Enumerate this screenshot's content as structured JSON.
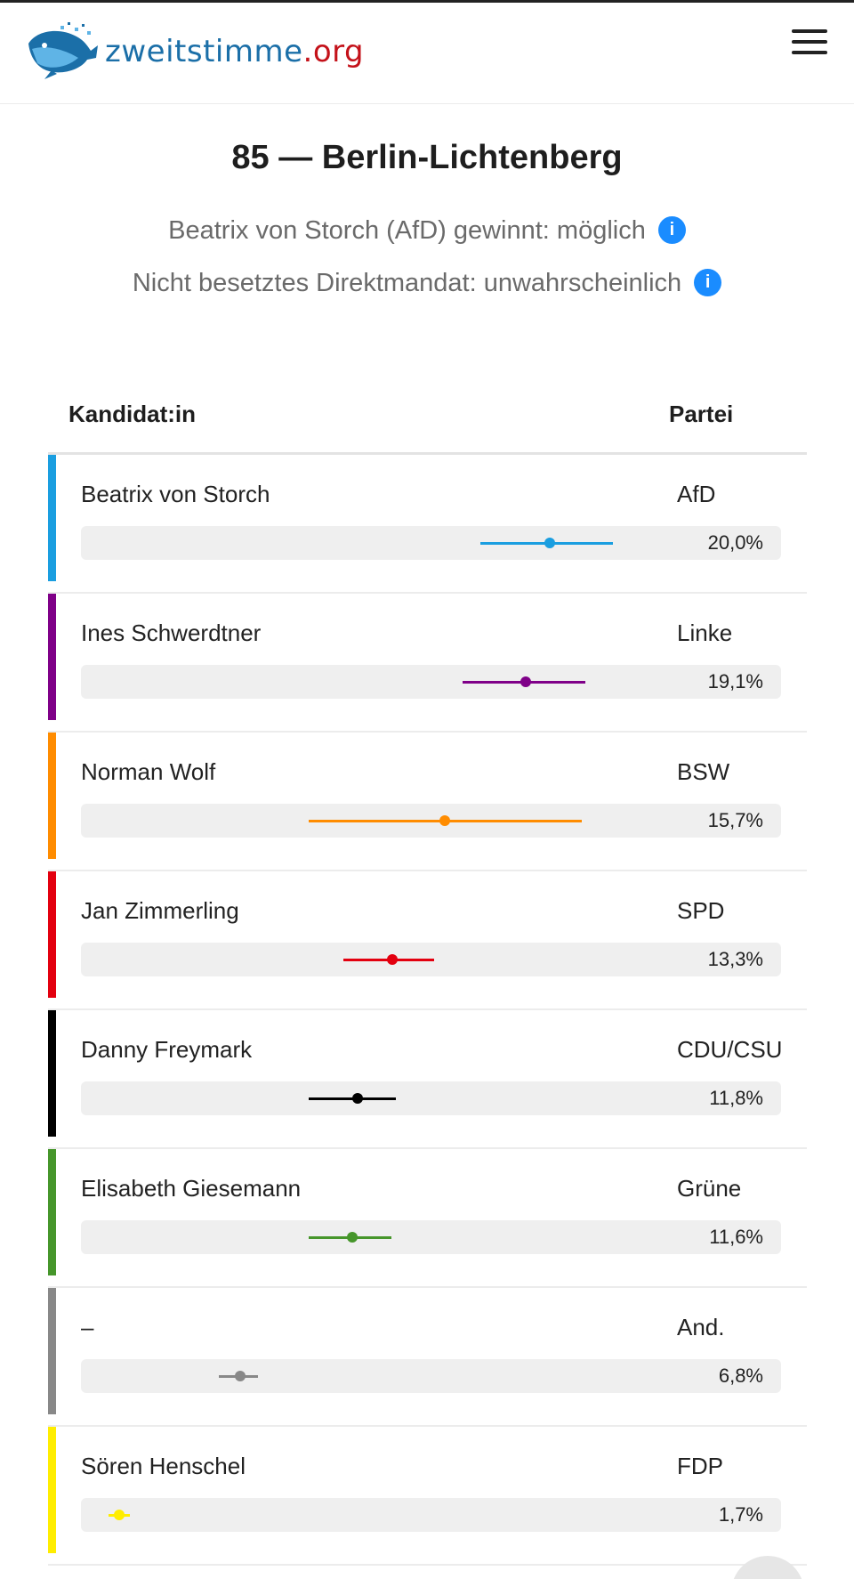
{
  "header": {
    "logo_text_main": "zweitstimme",
    "logo_text_dot": ".",
    "logo_text_tld": "org",
    "menu_icon": "hamburger-menu-icon"
  },
  "district": {
    "title": "85 — Berlin-Lichtenberg",
    "status_1": "Beatrix von Storch (AfD) gewinnt: möglich",
    "status_2": "Nicht besetztes Direktmandat: unwahrscheinlich",
    "info_glyph": "i"
  },
  "table": {
    "col_candidate": "Kandidat:in",
    "col_party": "Partei",
    "rows": [
      {
        "candidate": "Beatrix von Storch",
        "party": "AfD",
        "share": "20,0%",
        "color": "#1a9ee0",
        "low": 0.57,
        "est": 0.67,
        "high": 0.76
      },
      {
        "candidate": "Ines Schwerdtner",
        "party": "Linke",
        "share": "19,1%",
        "color": "#7f0088",
        "low": 0.545,
        "est": 0.635,
        "high": 0.72
      },
      {
        "candidate": "Norman Wolf",
        "party": "BSW",
        "share": "15,7%",
        "color": "#ff8c00",
        "low": 0.325,
        "est": 0.52,
        "high": 0.715
      },
      {
        "candidate": "Jan Zimmerling",
        "party": "SPD",
        "share": "13,3%",
        "color": "#e3000f",
        "low": 0.375,
        "est": 0.445,
        "high": 0.505
      },
      {
        "candidate": "Danny Freymark",
        "party": "CDU/CSU",
        "share": "11,8%",
        "color": "#000000",
        "low": 0.325,
        "est": 0.395,
        "high": 0.45
      },
      {
        "candidate": "Elisabeth Giesemann",
        "party": "Grüne",
        "share": "11,6%",
        "color": "#46962b",
        "low": 0.325,
        "est": 0.387,
        "high": 0.443
      },
      {
        "candidate": "–",
        "party": "And.",
        "share": "6,8%",
        "color": "#888888",
        "low": 0.197,
        "est": 0.227,
        "high": 0.253
      },
      {
        "candidate": "Sören Henschel",
        "party": "FDP",
        "share": "1,7%",
        "color": "#ffed00",
        "low": 0.04,
        "est": 0.055,
        "high": 0.07
      }
    ]
  }
}
